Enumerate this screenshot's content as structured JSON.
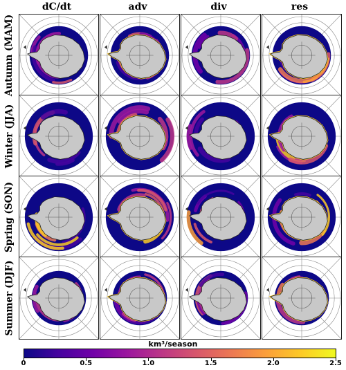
{
  "columns": [
    "dC/dt",
    "adv",
    "div",
    "res"
  ],
  "rows": [
    "Autumn (MAM)",
    "Winter (JJA)",
    "Spring (SON)",
    "Summer (DJF)"
  ],
  "colorbar": {
    "title": "km³/season",
    "ticks": [
      "0",
      "0.5",
      "1.0",
      "1.5",
      "2.0",
      "2.5"
    ],
    "range": [
      0,
      2.5
    ],
    "colormap": "plasma",
    "colors": [
      "#0d0887",
      "#46039f",
      "#7201a8",
      "#9c179e",
      "#bd3786",
      "#d8576b",
      "#ed7953",
      "#fb9f3a",
      "#fdca26",
      "#f0f921"
    ]
  },
  "map": {
    "projection": "south-polar-stereographic",
    "land_color": "#c8c8c8",
    "grid_color": "#888888"
  }
}
